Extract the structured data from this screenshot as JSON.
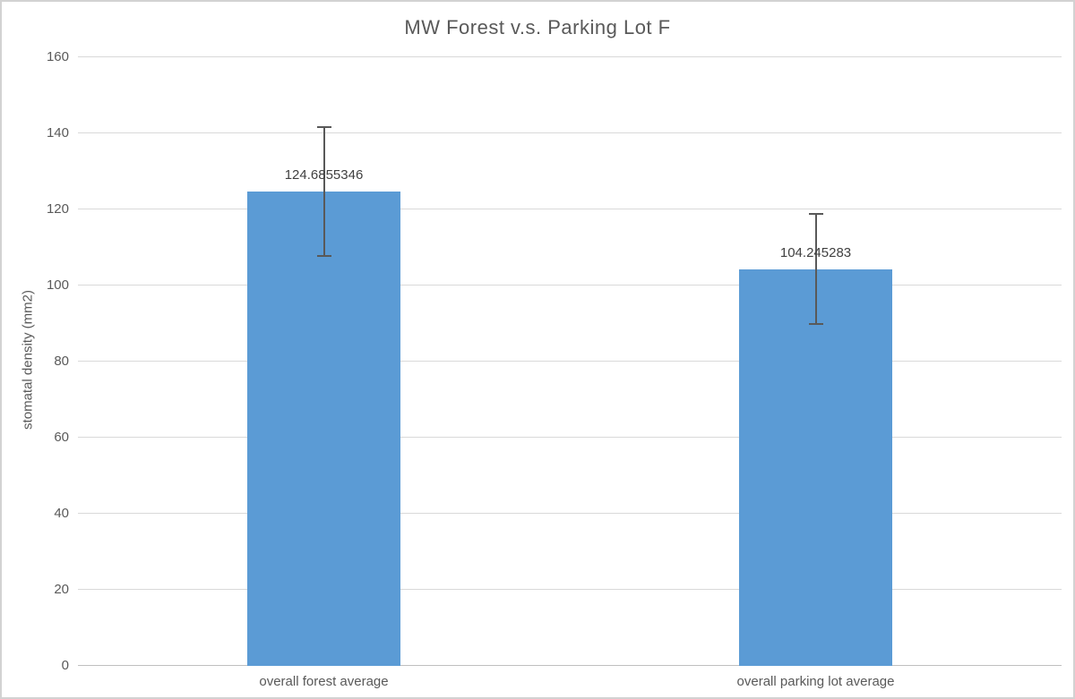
{
  "chart_data": {
    "type": "bar",
    "title": "MW Forest v.s. Parking Lot F",
    "xlabel": "",
    "ylabel": "stomatal density (mm2)",
    "categories": [
      "overall forest average",
      "overall parking lot average"
    ],
    "values": [
      124.6855346,
      104.245283
    ],
    "data_labels": [
      "124.6855346",
      "104.245283"
    ],
    "error_bars": [
      17.1,
      14.7
    ],
    "ylim": [
      0,
      160
    ],
    "yticks": [
      0,
      20,
      40,
      60,
      80,
      100,
      120,
      140,
      160
    ],
    "ytick_labels": [
      "0",
      "20",
      "40",
      "60",
      "80",
      "100",
      "120",
      "140",
      "160"
    ],
    "grid": true,
    "legend": false,
    "colors": {
      "bar": "#5B9BD5",
      "gridline": "#D9D9D9",
      "axis_line": "#BFBFBF",
      "error_bar": "#595959",
      "title_text": "#595959",
      "tick_text": "#595959",
      "category_text": "#595959",
      "data_label_text": "#404040",
      "y_axis_title_text": "#595959"
    }
  }
}
